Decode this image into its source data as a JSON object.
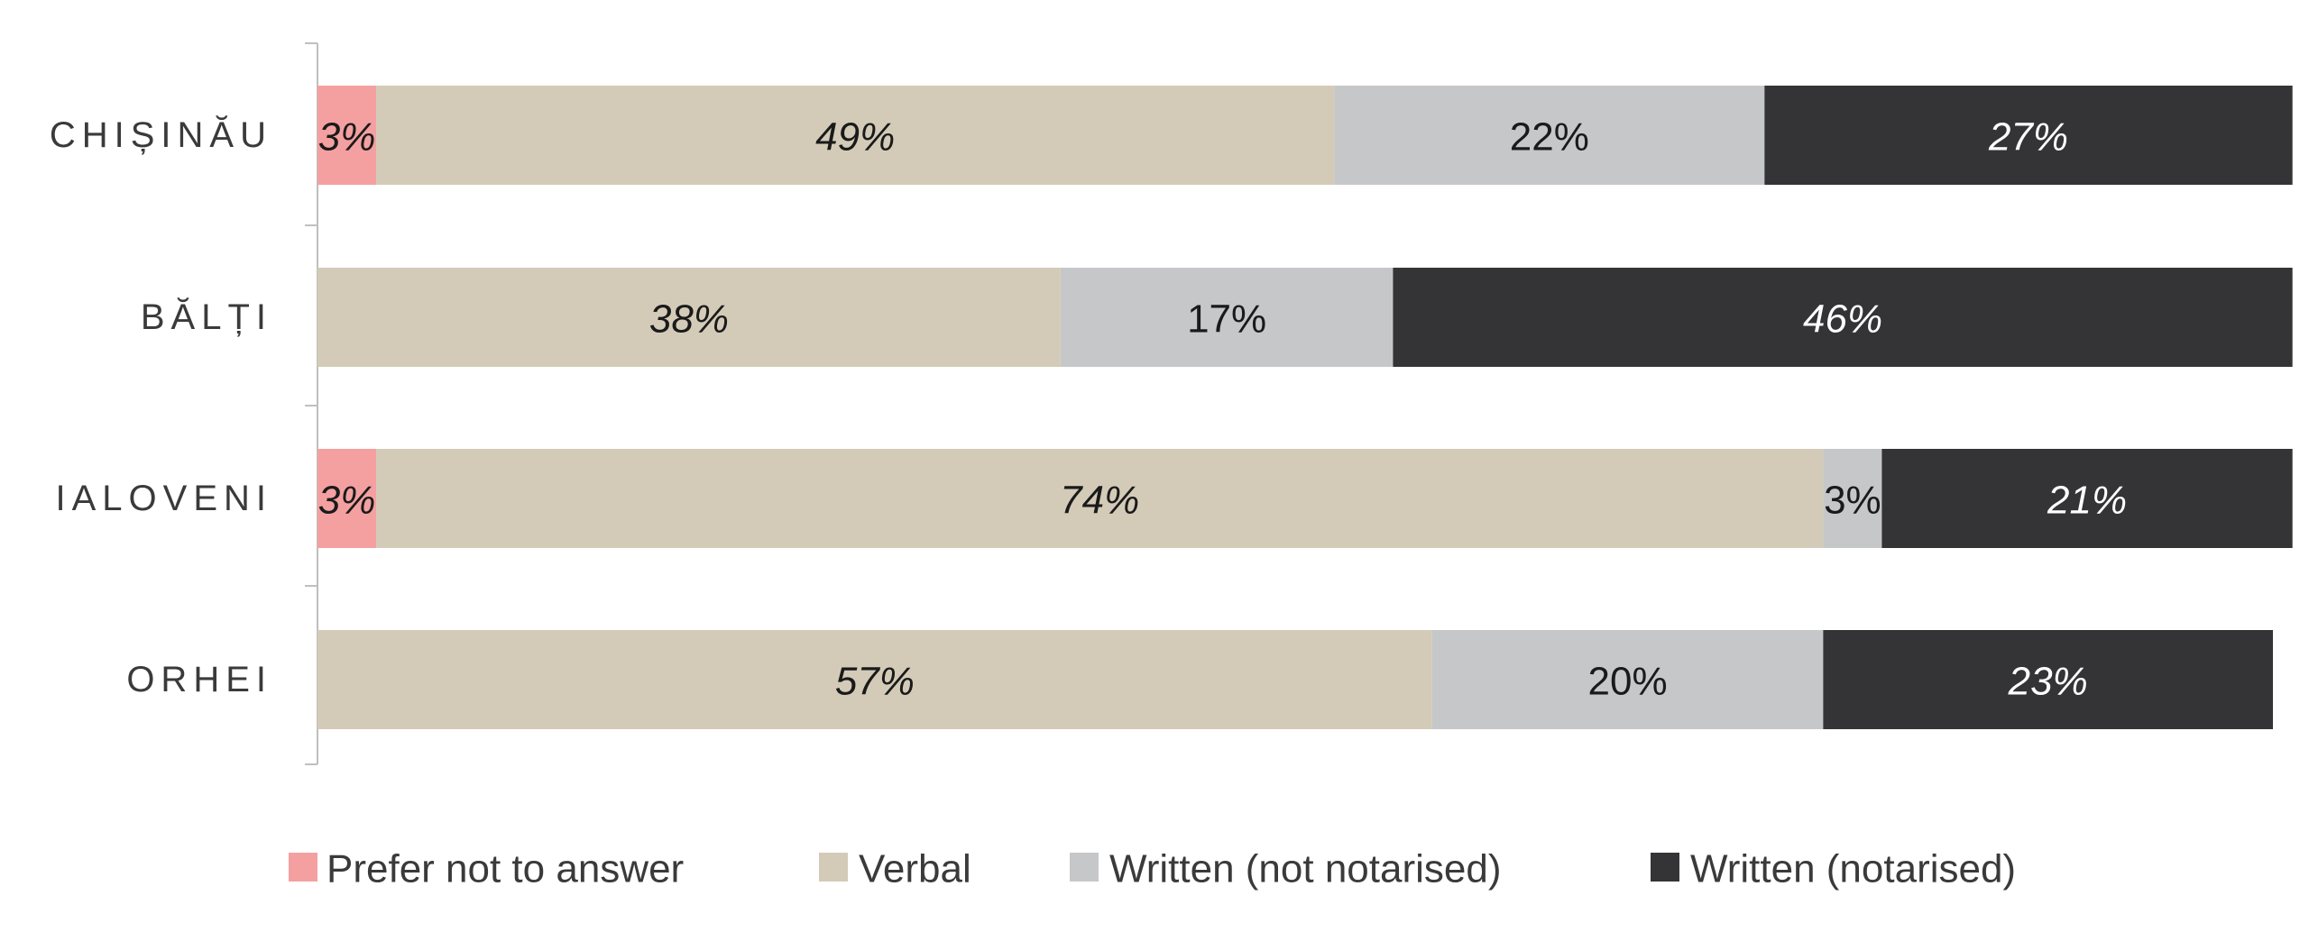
{
  "chart_data": {
    "type": "bar",
    "orientation": "horizontal",
    "stacked": true,
    "title": "",
    "xlabel": "",
    "ylabel": "",
    "xlim": [
      0,
      100
    ],
    "grid": false,
    "legend_position": "bottom",
    "categories": [
      "CHIȘINĂU",
      "BĂLȚI",
      "IALOVENI",
      "ORHEI"
    ],
    "series": [
      {
        "name": "Prefer not to answer",
        "color": "#f4a0a0",
        "label_color": "#1a1a1a",
        "label_italic": true,
        "values": [
          3,
          0,
          3,
          0
        ],
        "labels": [
          "3%",
          "",
          "3%",
          ""
        ]
      },
      {
        "name": "Verbal",
        "color": "#d3cbb8",
        "label_color": "#1a1a1a",
        "label_italic": true,
        "values": [
          49,
          38,
          74,
          57
        ],
        "labels": [
          "49%",
          "38%",
          "74%",
          "57%"
        ]
      },
      {
        "name": "Written (not notarised)",
        "color": "#c6c7c9",
        "label_color": "#1a1a1a",
        "label_italic": false,
        "values": [
          22,
          17,
          3,
          20
        ],
        "labels": [
          "22%",
          "17%",
          "3%",
          "20%"
        ]
      },
      {
        "name": "Written (notarised)",
        "color": "#343436",
        "label_color": "#ffffff",
        "label_italic": true,
        "values": [
          27,
          46,
          21,
          23
        ],
        "labels": [
          "27%",
          "46%",
          "21%",
          "23%"
        ]
      }
    ]
  }
}
